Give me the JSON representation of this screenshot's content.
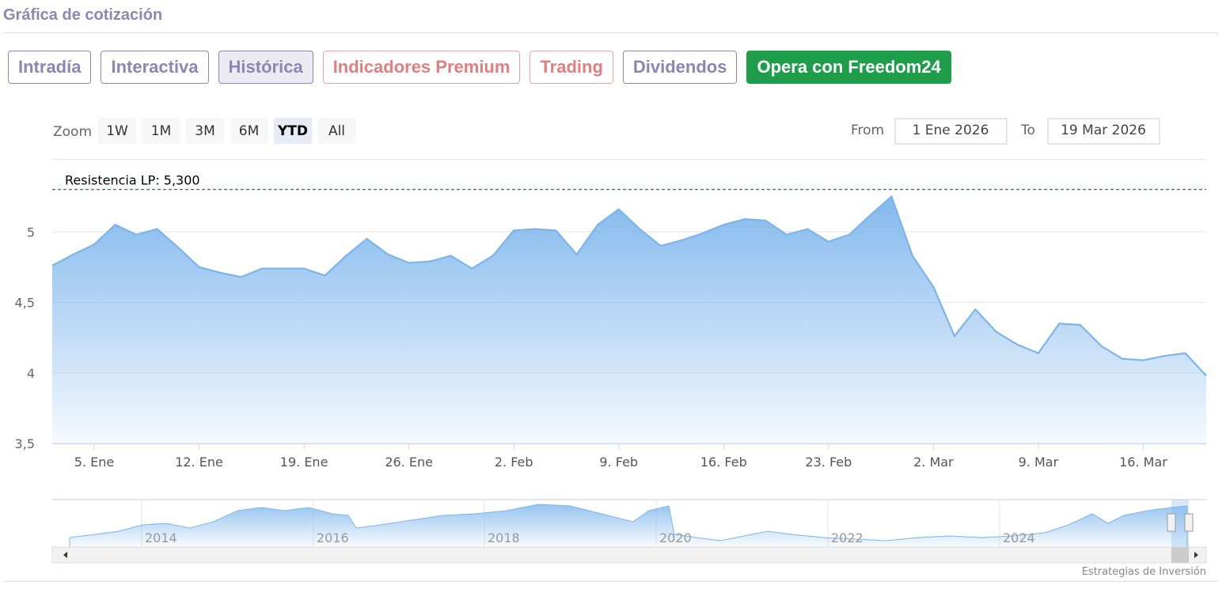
{
  "header": {
    "title": "Gráfica de cotización"
  },
  "tabs": [
    "Intradía",
    "Interactiva",
    "Histórica",
    "Indicadores Premium",
    "Trading",
    "Dividendos",
    "Opera con Freedom24"
  ],
  "zoom": {
    "label": "Zoom",
    "buttons": [
      "1W",
      "1M",
      "3M",
      "6M",
      "YTD",
      "All"
    ]
  },
  "range": {
    "from_label": "From",
    "from": "1 Ene 2026",
    "to_label": "To",
    "to": "19 Mar 2026"
  },
  "chart_data": {
    "type": "area",
    "color": "#7cb5ec",
    "grid": true,
    "x": [
      "2025-12-31",
      "2026-01-02",
      "2026-01-05",
      "2026-01-06",
      "2026-01-07",
      "2026-01-08",
      "2026-01-09",
      "2026-01-12",
      "2026-01-13",
      "2026-01-14",
      "2026-01-15",
      "2026-01-16",
      "2026-01-19",
      "2026-01-20",
      "2026-01-21",
      "2026-01-22",
      "2026-01-23",
      "2026-01-26",
      "2026-01-27",
      "2026-01-28",
      "2026-01-29",
      "2026-01-30",
      "2026-02-02",
      "2026-02-03",
      "2026-02-04",
      "2026-02-05",
      "2026-02-06",
      "2026-02-09",
      "2026-02-10",
      "2026-02-11",
      "2026-02-12",
      "2026-02-13",
      "2026-02-16",
      "2026-02-17",
      "2026-02-18",
      "2026-02-19",
      "2026-02-20",
      "2026-02-23",
      "2026-02-24",
      "2026-02-25",
      "2026-02-26",
      "2026-02-27",
      "2026-03-02",
      "2026-03-03",
      "2026-03-04",
      "2026-03-05",
      "2026-03-06",
      "2026-03-09",
      "2026-03-10",
      "2026-03-11",
      "2026-03-12",
      "2026-03-13",
      "2026-03-16",
      "2026-03-17",
      "2026-03-18",
      "2026-03-19"
    ],
    "values": [
      4.76,
      4.84,
      4.91,
      5.05,
      4.98,
      5.02,
      4.89,
      4.75,
      4.71,
      4.68,
      4.74,
      4.74,
      4.74,
      4.69,
      4.83,
      4.95,
      4.84,
      4.78,
      4.79,
      4.83,
      4.74,
      4.83,
      5.01,
      5.02,
      5.01,
      4.84,
      5.05,
      5.16,
      5.02,
      4.9,
      4.94,
      4.99,
      5.05,
      5.09,
      5.08,
      4.98,
      5.02,
      4.93,
      4.98,
      5.12,
      5.25,
      4.83,
      4.61,
      4.26,
      4.45,
      4.29,
      4.2,
      4.14,
      4.35,
      4.34,
      4.19,
      4.1,
      4.09,
      4.12,
      4.14,
      3.98
    ],
    "ylim": [
      3.5,
      5.5
    ],
    "yticks": [
      {
        "value": 3.5,
        "label": "3,5"
      },
      4,
      {
        "value": 4.5,
        "label": "4,5"
      },
      5
    ],
    "xticks": [
      {
        "value": "2026-01-05",
        "label": "5. Ene"
      },
      {
        "value": "2026-01-12",
        "label": "12. Ene"
      },
      {
        "value": "2026-01-19",
        "label": "19. Ene"
      },
      {
        "value": "2026-01-26",
        "label": "26. Ene"
      },
      {
        "value": "2026-02-02",
        "label": "2. Feb"
      },
      {
        "value": "2026-02-09",
        "label": "9. Feb"
      },
      {
        "value": "2026-02-16",
        "label": "16. Feb"
      },
      {
        "value": "2026-02-23",
        "label": "23. Feb"
      },
      {
        "value": "2026-03-02",
        "label": "2. Mar"
      },
      {
        "value": "2026-03-09",
        "label": "9. Mar"
      },
      {
        "value": "2026-03-16",
        "label": "16. Mar"
      }
    ],
    "annotations": [
      {
        "text": "Resistencia LP: 5,300",
        "value": 5.3
      }
    ]
  },
  "navigator": {
    "labels": [
      "2014",
      "2016",
      "2018",
      "2020",
      "2022",
      "2024"
    ]
  },
  "footer": {
    "credit": "Estrategias de Inversión"
  }
}
